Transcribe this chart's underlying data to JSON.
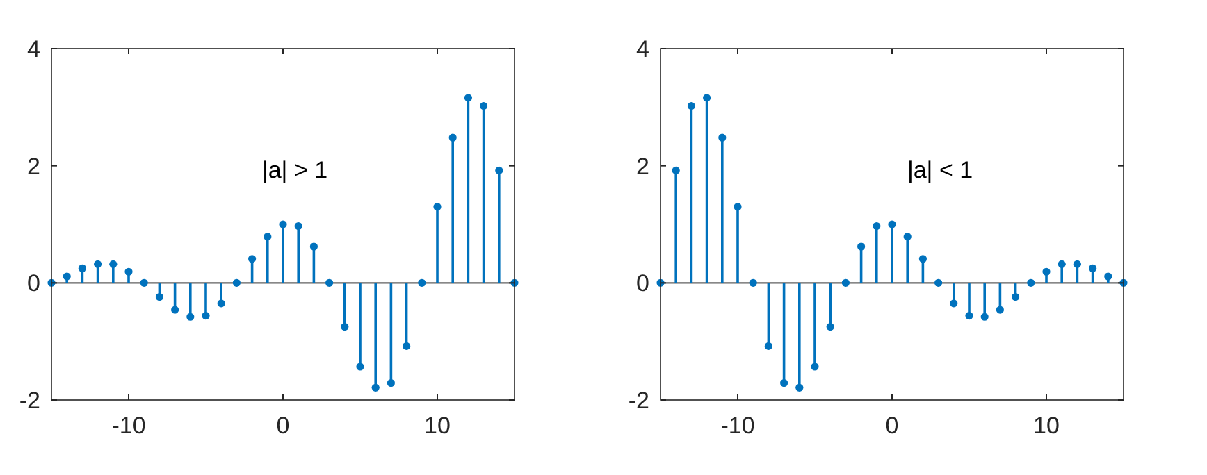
{
  "chart_data": [
    {
      "type": "lollipop",
      "x": [
        -15,
        -14,
        -13,
        -12,
        -11,
        -10,
        -9,
        -8,
        -7,
        -6,
        -5,
        -4,
        -3,
        -2,
        -1,
        0,
        1,
        2,
        3,
        4,
        5,
        6,
        7,
        8,
        9,
        10,
        11,
        12,
        13,
        14,
        15
      ],
      "values": [
        0,
        0.11,
        0.25,
        0.32,
        0.32,
        0.19,
        0,
        -0.24,
        -0.46,
        -0.58,
        -0.56,
        -0.35,
        0,
        0.41,
        0.79,
        1.0,
        0.97,
        0.62,
        0,
        -0.75,
        -1.43,
        -1.79,
        -1.71,
        -1.08,
        0,
        1.3,
        2.48,
        3.16,
        3.02,
        1.92,
        0
      ],
      "color": "#0072bd",
      "marker": "circle",
      "xlim": [
        -15,
        15
      ],
      "xticks": [
        -10,
        0,
        10
      ],
      "ylim": [
        -2,
        4
      ],
      "yticks": [
        -2,
        0,
        2,
        4
      ],
      "annotations": [
        "|a| > 1"
      ]
    },
    {
      "type": "lollipop",
      "x": [
        -15,
        -14,
        -13,
        -12,
        -11,
        -10,
        -9,
        -8,
        -7,
        -6,
        -5,
        -4,
        -3,
        -2,
        -1,
        0,
        1,
        2,
        3,
        4,
        5,
        6,
        7,
        8,
        9,
        10,
        11,
        12,
        13,
        14,
        15
      ],
      "values": [
        0,
        1.92,
        3.02,
        3.16,
        2.48,
        1.3,
        0,
        -1.08,
        -1.71,
        -1.79,
        -1.43,
        -0.75,
        0,
        0.62,
        0.97,
        1.0,
        0.79,
        0.41,
        0,
        -0.35,
        -0.56,
        -0.58,
        -0.46,
        -0.24,
        0,
        0.19,
        0.32,
        0.32,
        0.25,
        0.11,
        0
      ],
      "color": "#0072bd",
      "marker": "circle",
      "xlim": [
        -15,
        15
      ],
      "xticks": [
        -10,
        0,
        10
      ],
      "ylim": [
        -2,
        4
      ],
      "yticks": [
        -2,
        0,
        2,
        4
      ],
      "annotations": [
        "|a| < 1"
      ]
    }
  ]
}
